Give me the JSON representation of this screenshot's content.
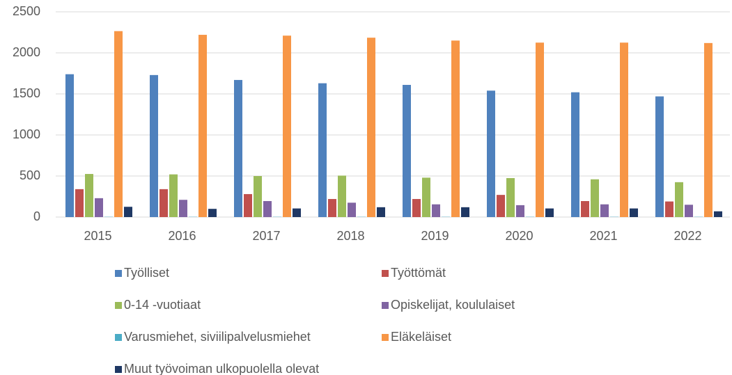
{
  "chart_data": {
    "type": "bar",
    "categories": [
      "2015",
      "2016",
      "2017",
      "2018",
      "2019",
      "2020",
      "2021",
      "2022"
    ],
    "series": [
      {
        "name": "Työlliset",
        "color": "#4f81bd",
        "values": [
          1740,
          1730,
          1670,
          1630,
          1610,
          1540,
          1520,
          1470
        ]
      },
      {
        "name": "Työttömät",
        "color": "#c0504d",
        "values": [
          340,
          340,
          280,
          220,
          220,
          270,
          195,
          190
        ]
      },
      {
        "name": "0-14 -vuotiaat",
        "color": "#9bbb59",
        "values": [
          525,
          520,
          500,
          505,
          480,
          475,
          460,
          425
        ]
      },
      {
        "name": "Opiskelijat, koululaiset",
        "color": "#8064a2",
        "values": [
          230,
          210,
          195,
          175,
          155,
          145,
          155,
          150
        ]
      },
      {
        "name": "Varusmiehet, siviilipalvelusmiehet",
        "color": "#4bacc6",
        "values": [
          3,
          3,
          3,
          3,
          3,
          3,
          3,
          3
        ]
      },
      {
        "name": "Eläkeläiset",
        "color": "#f79646",
        "values": [
          2265,
          2220,
          2210,
          2185,
          2150,
          2125,
          2125,
          2120
        ]
      },
      {
        "name": "Muut työvoiman ulkopuolella olevat",
        "color": "#1f3864",
        "values": [
          125,
          100,
          105,
          120,
          120,
          105,
          105,
          70
        ]
      }
    ],
    "ylim": [
      0,
      2500
    ],
    "yticks": [
      0,
      500,
      1000,
      1500,
      2000,
      2500
    ],
    "grid": true,
    "legend": "bottom"
  }
}
